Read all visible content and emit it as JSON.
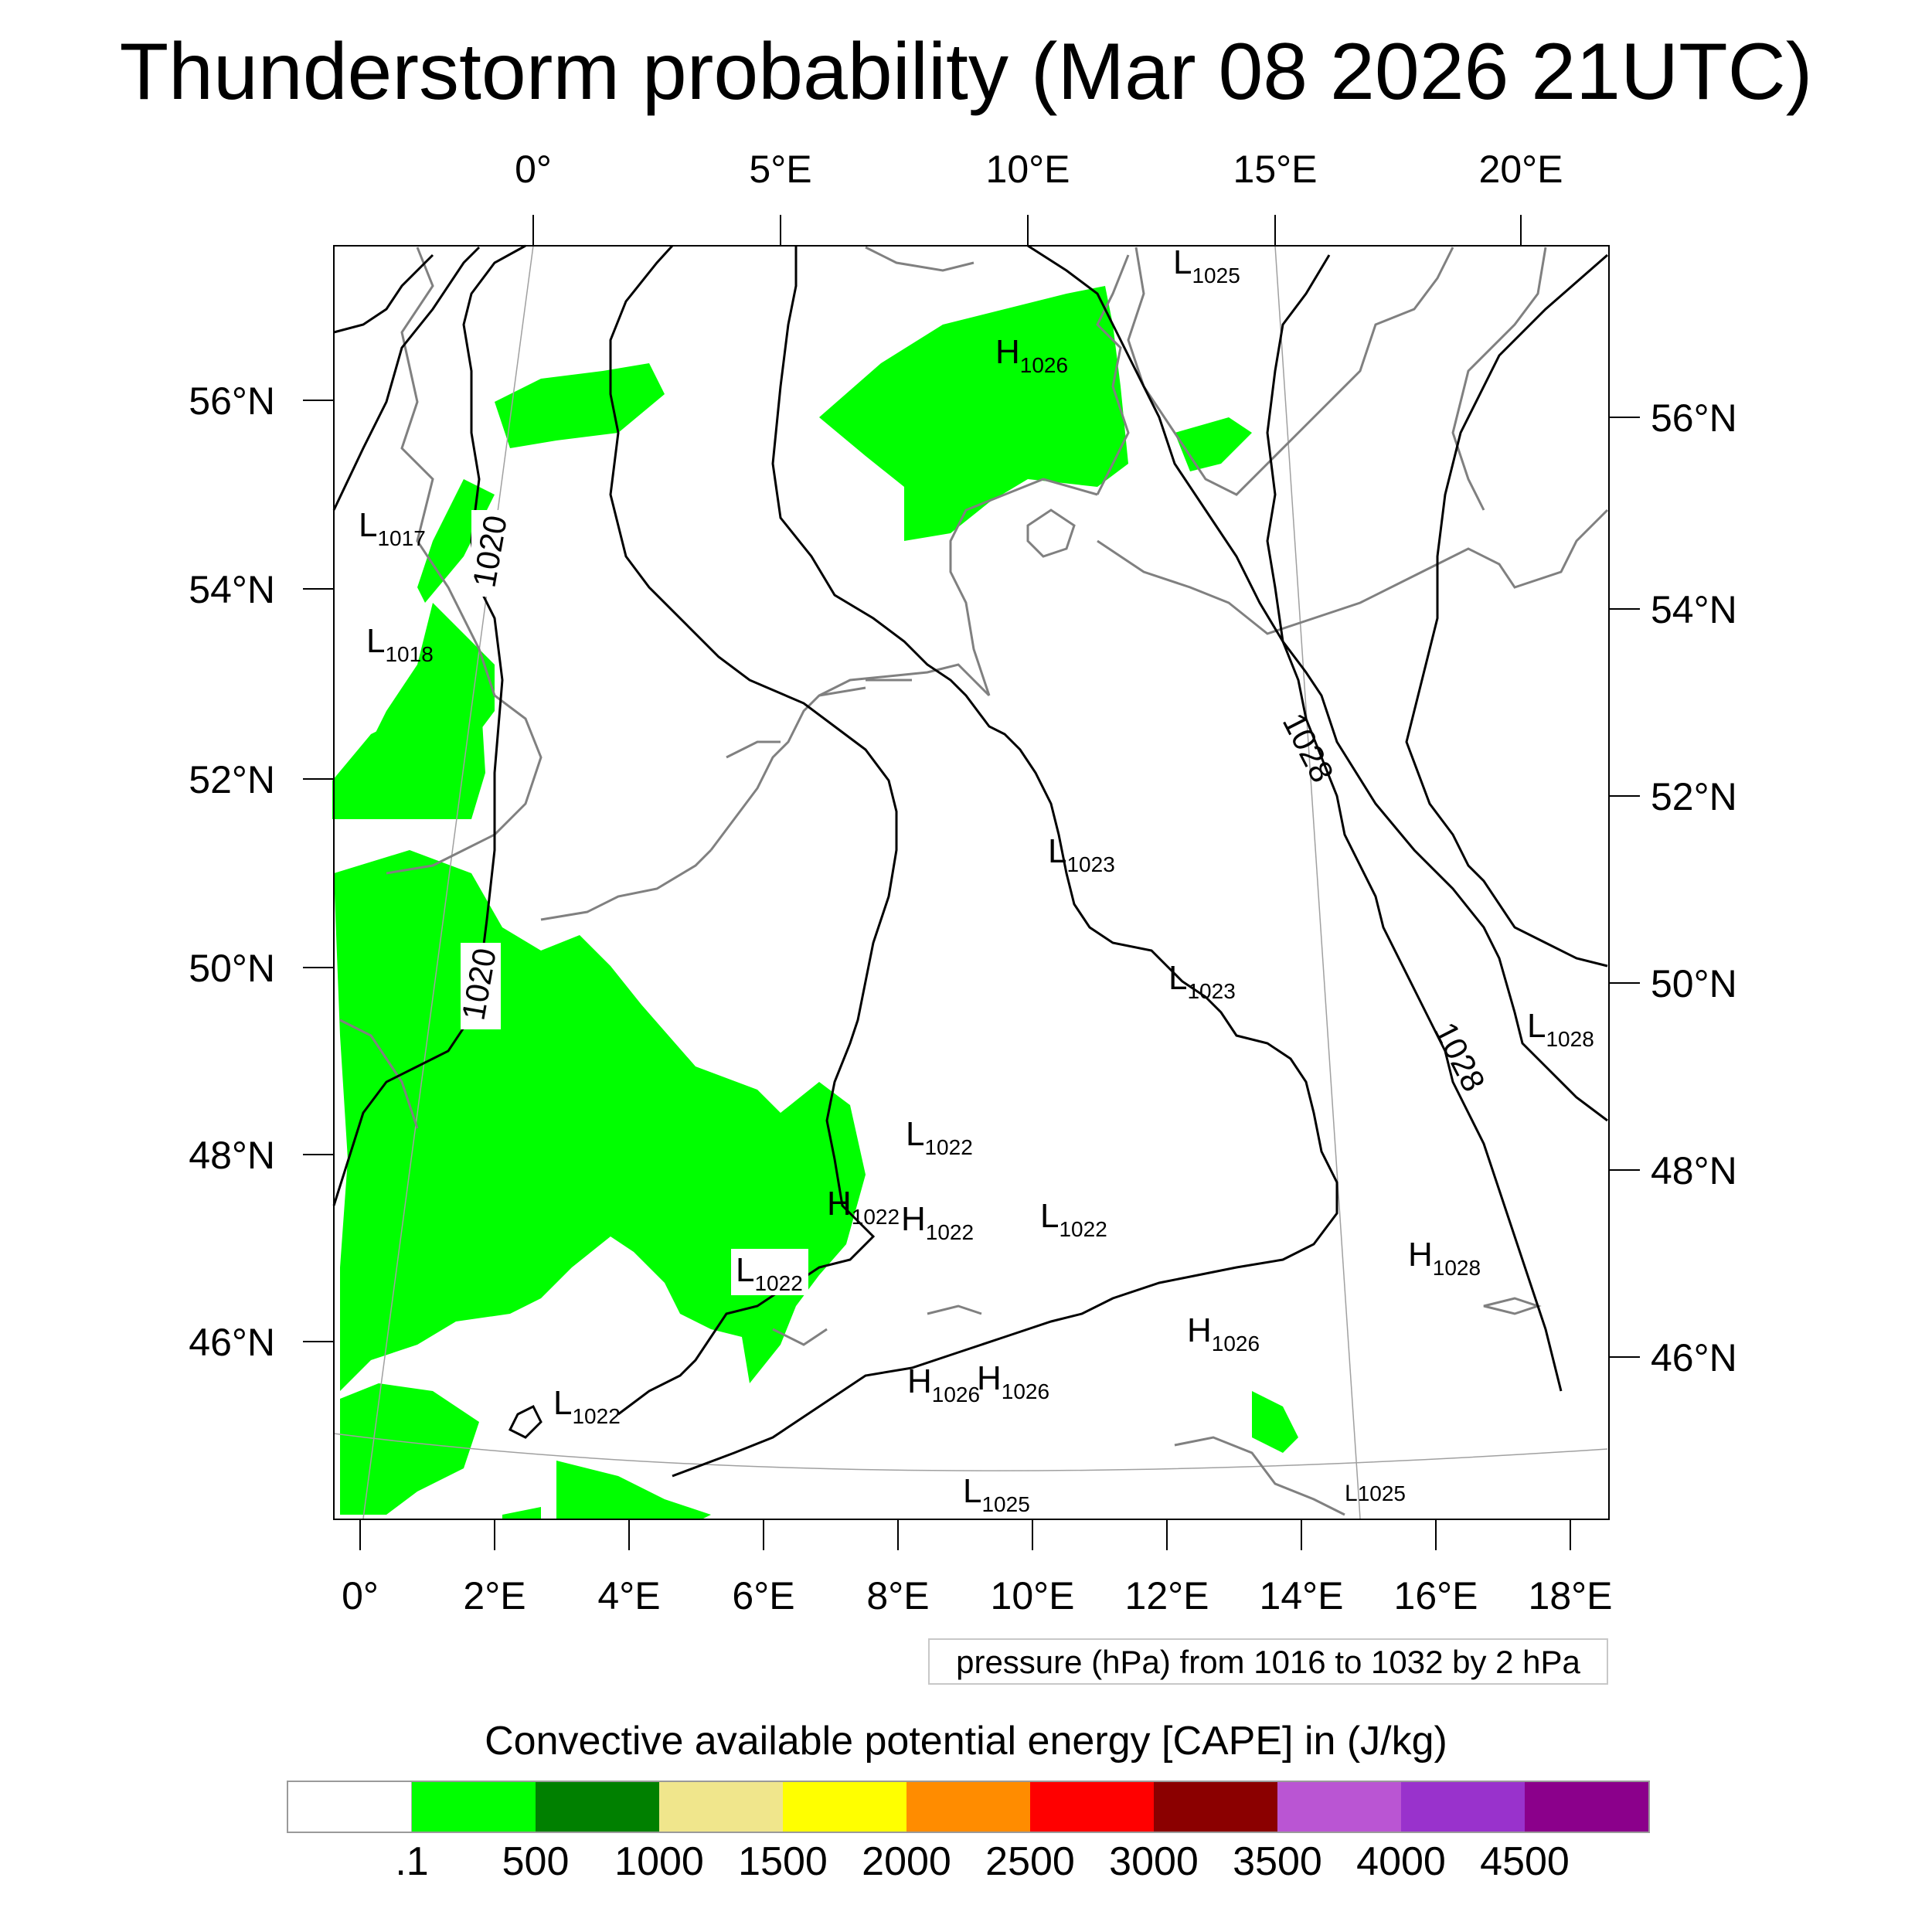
{
  "title": "Thunderstorm probability (Mar 08 2026 21UTC)",
  "map": {
    "top_lon_labels": [
      "0°",
      "5°E",
      "10°E",
      "15°E",
      "20°E"
    ],
    "bottom_lon_labels": [
      "0°",
      "2°E",
      "4°E",
      "6°E",
      "8°E",
      "10°E",
      "12°E",
      "14°E",
      "16°E",
      "18°E"
    ],
    "left_lat_labels": [
      "56°N",
      "54°N",
      "52°N",
      "50°N",
      "48°N",
      "46°N"
    ],
    "right_lat_labels": [
      "56°N",
      "54°N",
      "52°N",
      "50°N",
      "48°N",
      "46°N"
    ],
    "isobar_labels": [
      "1020",
      "1020",
      "1028",
      "1028"
    ],
    "pressure_centers": [
      {
        "letter": "L",
        "value": "1017"
      },
      {
        "letter": "L",
        "value": "1018"
      },
      {
        "letter": "L",
        "value": "1025"
      },
      {
        "letter": "H",
        "value": "1026"
      },
      {
        "letter": "L",
        "value": "1023"
      },
      {
        "letter": "L",
        "value": "1023"
      },
      {
        "letter": "L",
        "value": "1028"
      },
      {
        "letter": "L",
        "value": "1022"
      },
      {
        "letter": "H",
        "value": "1022"
      },
      {
        "letter": "H",
        "value": "1022"
      },
      {
        "letter": "L",
        "value": "1022"
      },
      {
        "letter": "L",
        "value": "1022"
      },
      {
        "letter": "H",
        "value": "1028"
      },
      {
        "letter": "H",
        "value": "1026"
      },
      {
        "letter": "L",
        "value": "1022"
      },
      {
        "letter": "H",
        "value": "1026"
      },
      {
        "letter": "H",
        "value": "1026"
      },
      {
        "letter": "L",
        "value": "1025"
      },
      {
        "letter": "L",
        "value": "1025"
      }
    ],
    "colors": {
      "cape": "#00ff00",
      "isobar": "#000000",
      "coast": "#808080",
      "graticule": "#9a9a9a"
    }
  },
  "contour_note": "pressure (hPa) from 1016 to 1032 by 2 hPa",
  "colorbar": {
    "title": "Convective available potential energy [CAPE] in (J/kg)",
    "labels": [
      ".1",
      "500",
      "1000",
      "1500",
      "2000",
      "2500",
      "3000",
      "3500",
      "4000",
      "4500"
    ],
    "colors": [
      "#ffffff",
      "#00ff00",
      "#008000",
      "#f0e68c",
      "#ffff00",
      "#ff8c00",
      "#ff0000",
      "#8b0000",
      "#ba55d3",
      "#9932cc",
      "#8b008b"
    ]
  }
}
